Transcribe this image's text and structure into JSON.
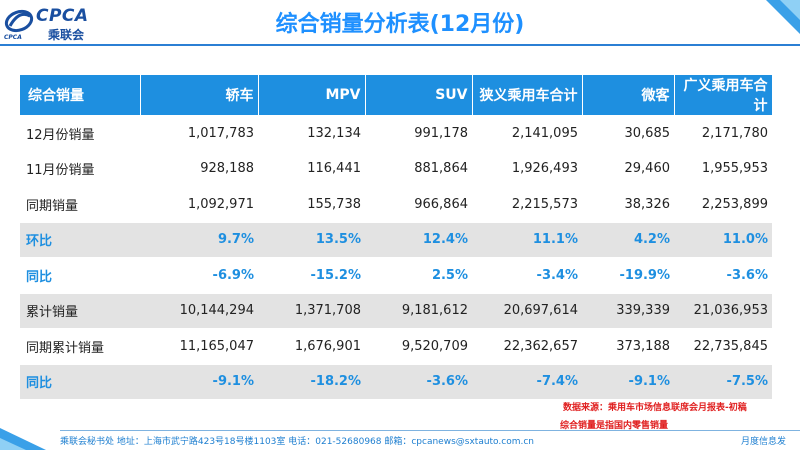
{
  "logo": {
    "brand": "CPCA",
    "cn": "乘联会",
    "sub": "CPCA"
  },
  "title": "综合销量分析表(12月份)",
  "colors": {
    "header_bg": "#1e8fe0",
    "pct_text": "#1e8fe0",
    "gray_row": "#e3e3e3",
    "note_red": "#e02020"
  },
  "table": {
    "headers": [
      "综合销量",
      "轿车",
      "MPV",
      "SUV",
      "狭义乘用车合计",
      "微客",
      "广义乘用车合计"
    ],
    "rows": [
      {
        "label": "12月份销量",
        "values": [
          "1,017,783",
          "132,134",
          "991,178",
          "2,141,095",
          "30,685",
          "2,171,780"
        ]
      },
      {
        "label": "11月份销量",
        "values": [
          "928,188",
          "116,441",
          "881,864",
          "1,926,493",
          "29,460",
          "1,955,953"
        ]
      },
      {
        "label": "同期销量",
        "values": [
          "1,092,971",
          "155,738",
          "966,864",
          "2,215,573",
          "38,326",
          "2,253,899"
        ]
      },
      {
        "label": "环比",
        "values": [
          "9.7%",
          "13.5%",
          "12.4%",
          "11.1%",
          "4.2%",
          "11.0%"
        ]
      },
      {
        "label": "同比",
        "values": [
          "-6.9%",
          "-15.2%",
          "2.5%",
          "-3.4%",
          "-19.9%",
          "-3.6%"
        ]
      },
      {
        "label": "累计销量",
        "values": [
          "10,144,294",
          "1,371,708",
          "9,181,612",
          "20,697,614",
          "339,339",
          "21,036,953"
        ]
      },
      {
        "label": "同期累计销量",
        "values": [
          "11,165,047",
          "1,676,901",
          "9,520,709",
          "22,362,657",
          "373,188",
          "22,735,845"
        ]
      },
      {
        "label": "同比",
        "values": [
          "-9.1%",
          "-18.2%",
          "-3.6%",
          "-7.4%",
          "-9.1%",
          "-7.5%"
        ]
      }
    ]
  },
  "notes": {
    "source": "数据来源：乘用车市场信息联席会月报表-初稿",
    "scope": "综合销量是指国内零售销量"
  },
  "footer": {
    "left": "乘联会秘书处   地址：上海市武宁路423号18号楼1103室  电话：021-52680968   邮箱：cpcanews@sxtauto.com.cn",
    "right": "月度信息发"
  }
}
